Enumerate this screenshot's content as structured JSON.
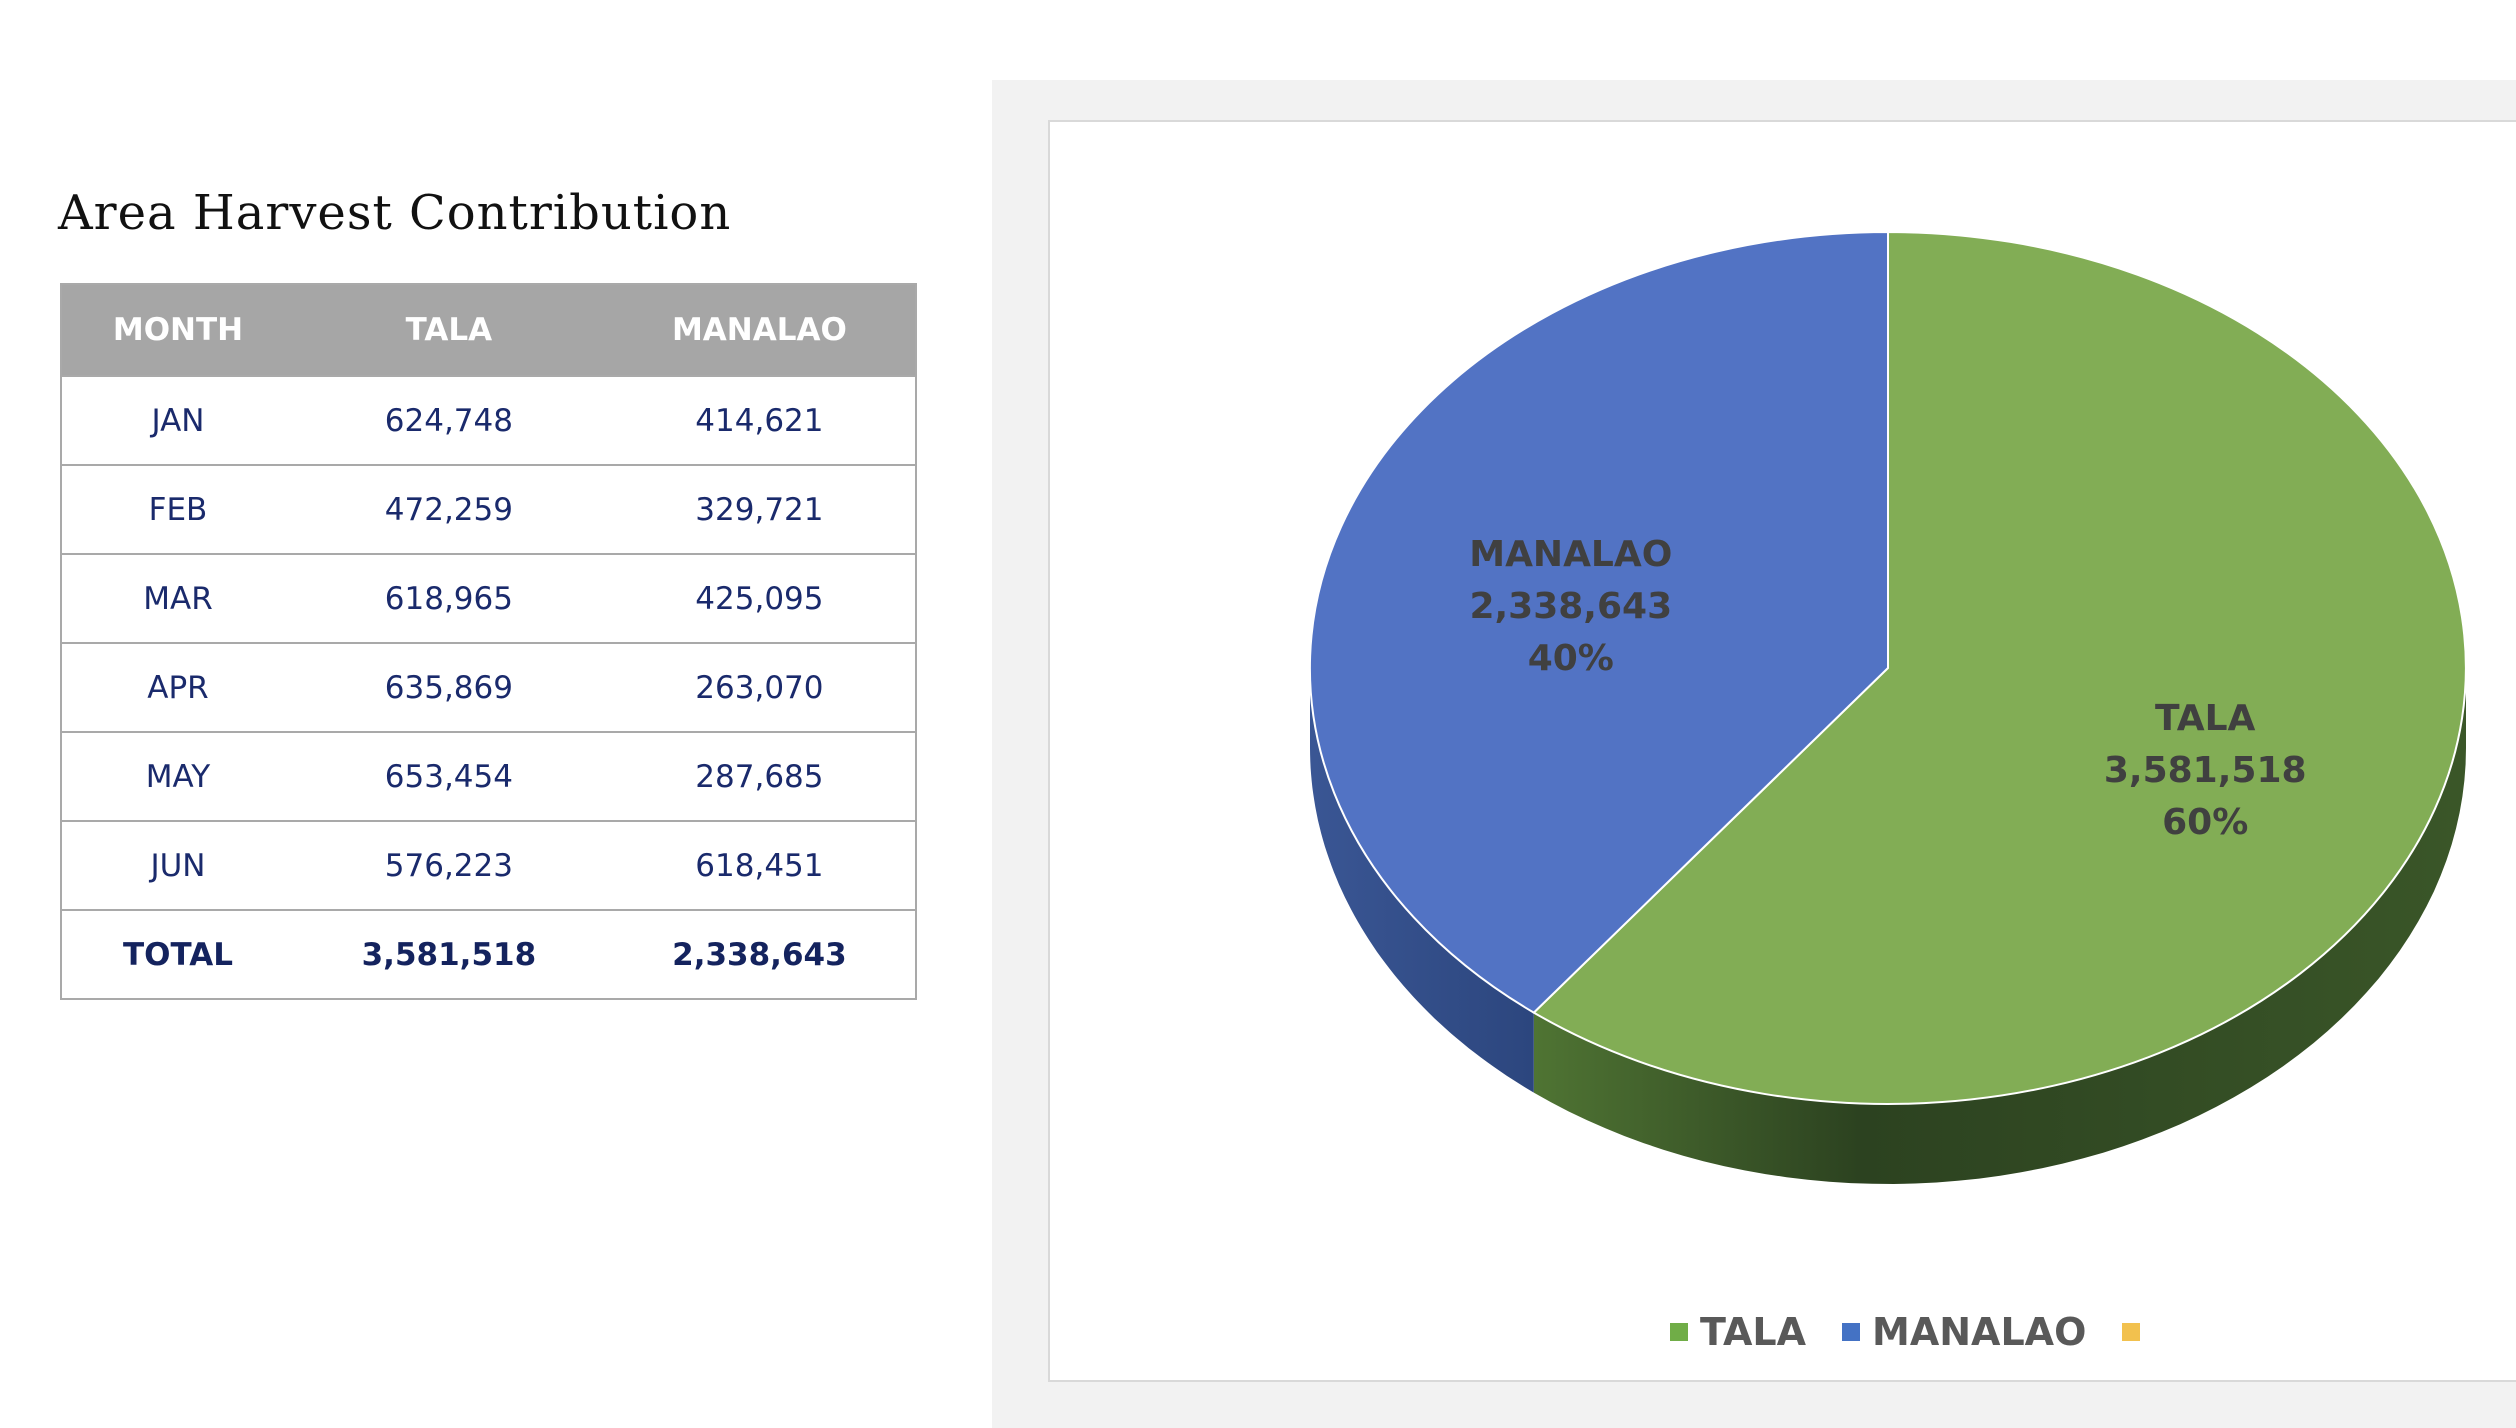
{
  "title": "Area Harvest Contribution",
  "table": {
    "headers": [
      "MONTH",
      "TALA",
      "MANALAO"
    ],
    "rows": [
      [
        "JAN",
        "624,748",
        "414,621"
      ],
      [
        "FEB",
        "472,259",
        "329,721"
      ],
      [
        "MAR",
        "618,965",
        "425,095"
      ],
      [
        "APR",
        "635,869",
        "263,070"
      ],
      [
        "MAY",
        "653,454",
        "287,685"
      ],
      [
        "JUN",
        "576,223",
        "618,451"
      ]
    ],
    "total": [
      "TOTAL",
      "3,581,518",
      "2,338,643"
    ]
  },
  "chart_data": {
    "type": "pie",
    "title": "",
    "slices": [
      {
        "name": "TALA",
        "value": 3581518,
        "value_label": "3,581,518",
        "percent_label": "60%",
        "color": "#82ad55"
      },
      {
        "name": "MANALAO",
        "value": 2338643,
        "value_label": "2,338,643",
        "percent_label": "40%",
        "color": "#5273c4"
      }
    ],
    "legend": [
      {
        "name": "TALA",
        "color": "#70ad47"
      },
      {
        "name": "MANALAO",
        "color": "#4472c4"
      },
      {
        "name": "",
        "color": "#f2c14e"
      }
    ],
    "legend_position": "bottom",
    "style": "3d"
  }
}
